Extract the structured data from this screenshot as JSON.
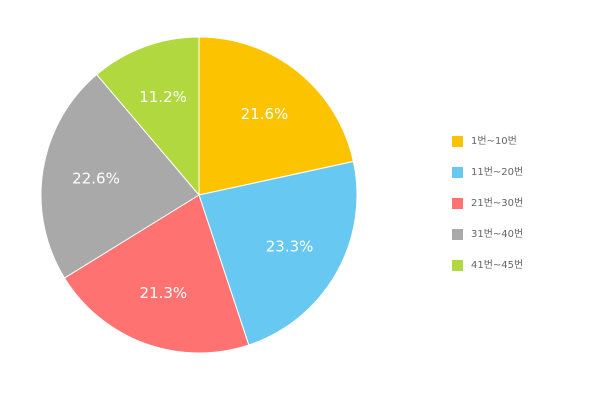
{
  "chart_data": {
    "type": "pie",
    "title": "",
    "legend_position": "right",
    "slices": [
      {
        "label": "1번~10번",
        "value": 21.6,
        "value_label": "21.6%",
        "color": "#FBC300"
      },
      {
        "label": "11번~20번",
        "value": 23.3,
        "value_label": "23.3%",
        "color": "#67C8F2"
      },
      {
        "label": "21번~30번",
        "value": 21.3,
        "value_label": "21.3%",
        "color": "#FF7272"
      },
      {
        "label": "31번~40번",
        "value": 22.6,
        "value_label": "22.6%",
        "color": "#A9A9A9"
      },
      {
        "label": "41번~45번",
        "value": 11.2,
        "value_label": "11.2%",
        "color": "#B1D83F"
      }
    ]
  }
}
